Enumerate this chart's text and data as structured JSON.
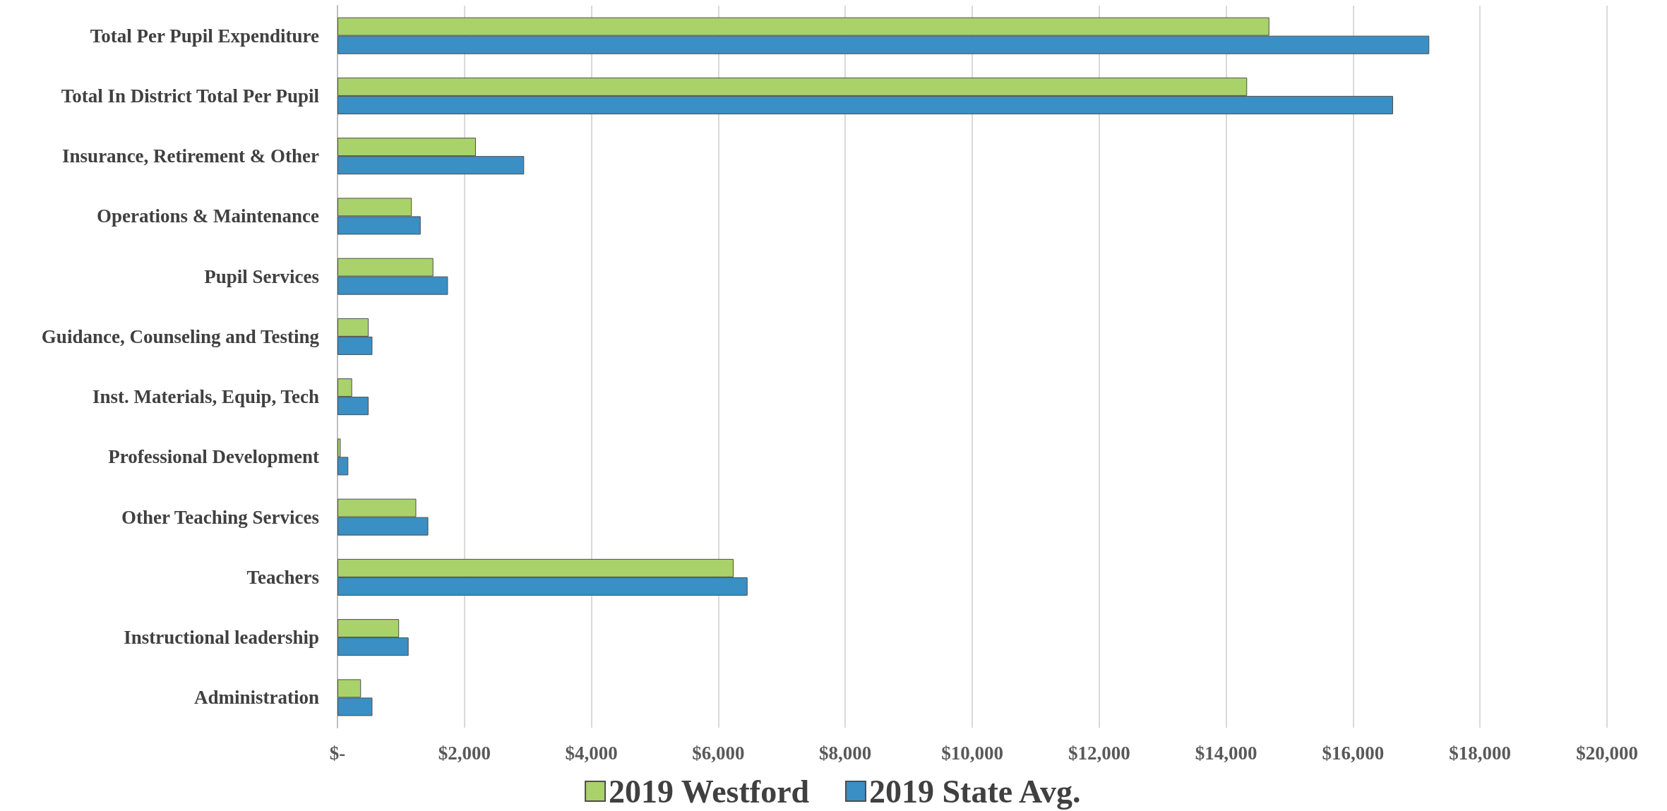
{
  "chart_data": {
    "type": "bar",
    "orientation": "horizontal",
    "categories": [
      "Total Per Pupil Expenditure",
      "Total In District Total Per Pupil",
      "Insurance, Retirement & Other",
      "Operations & Maintenance",
      "Pupil Services",
      "Guidance, Counseling and Testing",
      "Inst. Materials, Equip, Tech",
      "Professional Development",
      "Other Teaching Services",
      "Teachers",
      "Instructional leadership",
      "Administration"
    ],
    "series": [
      {
        "name": "2019 Westford",
        "color": "#a9d26a",
        "values": [
          14680,
          14330,
          2180,
          1170,
          1510,
          490,
          230,
          50,
          1240,
          6240,
          970,
          370
        ]
      },
      {
        "name": "2019 State Avg.",
        "color": "#3a8fc4",
        "values": [
          17200,
          16630,
          2940,
          1310,
          1740,
          550,
          490,
          170,
          1430,
          6460,
          1120,
          550
        ]
      }
    ],
    "xlim": [
      0,
      20000
    ],
    "xticks": [
      {
        "value": 0,
        "label": "$-"
      },
      {
        "value": 2000,
        "label": "$2,000"
      },
      {
        "value": 4000,
        "label": "$4,000"
      },
      {
        "value": 6000,
        "label": "$6,000"
      },
      {
        "value": 8000,
        "label": "$8,000"
      },
      {
        "value": 10000,
        "label": "$10,000"
      },
      {
        "value": 12000,
        "label": "$12,000"
      },
      {
        "value": 14000,
        "label": "$14,000"
      },
      {
        "value": 16000,
        "label": "$16,000"
      },
      {
        "value": 18000,
        "label": "$18,000"
      },
      {
        "value": 20000,
        "label": "$20,000"
      }
    ],
    "grid": "x",
    "legend": "bottom"
  }
}
